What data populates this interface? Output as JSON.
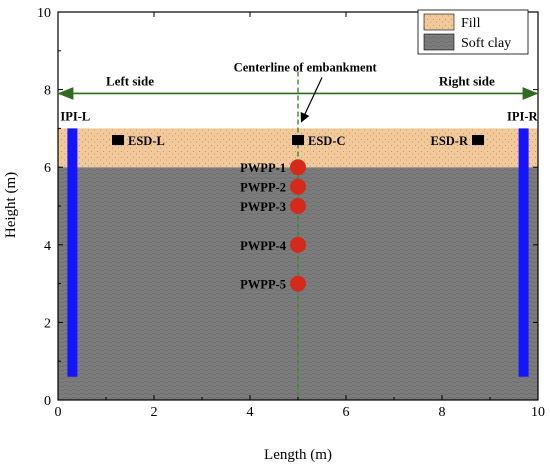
{
  "axes": {
    "x_label": "Length (m)",
    "y_label": "Height (m)",
    "x_range": [
      0,
      10
    ],
    "y_range": [
      0,
      10
    ],
    "x_ticks": [
      "0",
      "2",
      "4",
      "6",
      "8",
      "10"
    ],
    "y_ticks": [
      "0",
      "2",
      "4",
      "6",
      "8",
      "10"
    ]
  },
  "legend": {
    "fill_label": "Fill",
    "clay_label": "Soft clay"
  },
  "layers": {
    "fill": {
      "y_bottom": 6.0,
      "y_top": 7.0,
      "color": "#f2c99b"
    },
    "clay": {
      "y_bottom": 0.0,
      "y_top": 6.0,
      "color": "#7f7f7f"
    }
  },
  "labels": {
    "left_side": "Left side",
    "right_side": "Right side",
    "centerline": "Centerline of embankment"
  },
  "arrow": {
    "y": 7.9,
    "x_from": 0,
    "x_to": 10,
    "color": "#2e6b1e"
  },
  "centerline_x": 5.0,
  "inclinometers": [
    {
      "label": "IPI-L",
      "x": 0.3,
      "y_top": 7.0,
      "y_bottom": 0.6
    },
    {
      "label": "IPI-R",
      "x": 9.7,
      "y_top": 7.0,
      "y_bottom": 0.6
    }
  ],
  "settlement_devices": [
    {
      "label": "ESD-L",
      "x": 1.25,
      "y": 6.7
    },
    {
      "label": "ESD-C",
      "x": 5.0,
      "y": 6.7
    },
    {
      "label": "ESD-R",
      "x": 8.75,
      "y": 6.7
    }
  ],
  "piezometers": [
    {
      "label": "PWPP-1",
      "x": 5.0,
      "y": 6.0
    },
    {
      "label": "PWPP-2",
      "x": 5.0,
      "y": 5.5
    },
    {
      "label": "PWPP-3",
      "x": 5.0,
      "y": 5.0
    },
    {
      "label": "PWPP-4",
      "x": 5.0,
      "y": 4.0
    },
    {
      "label": "PWPP-5",
      "x": 5.0,
      "y": 3.0
    }
  ],
  "colors": {
    "inclinometer": "#1414ff",
    "piezometer": "#d42a1c",
    "centerline": "#3c8a28"
  }
}
